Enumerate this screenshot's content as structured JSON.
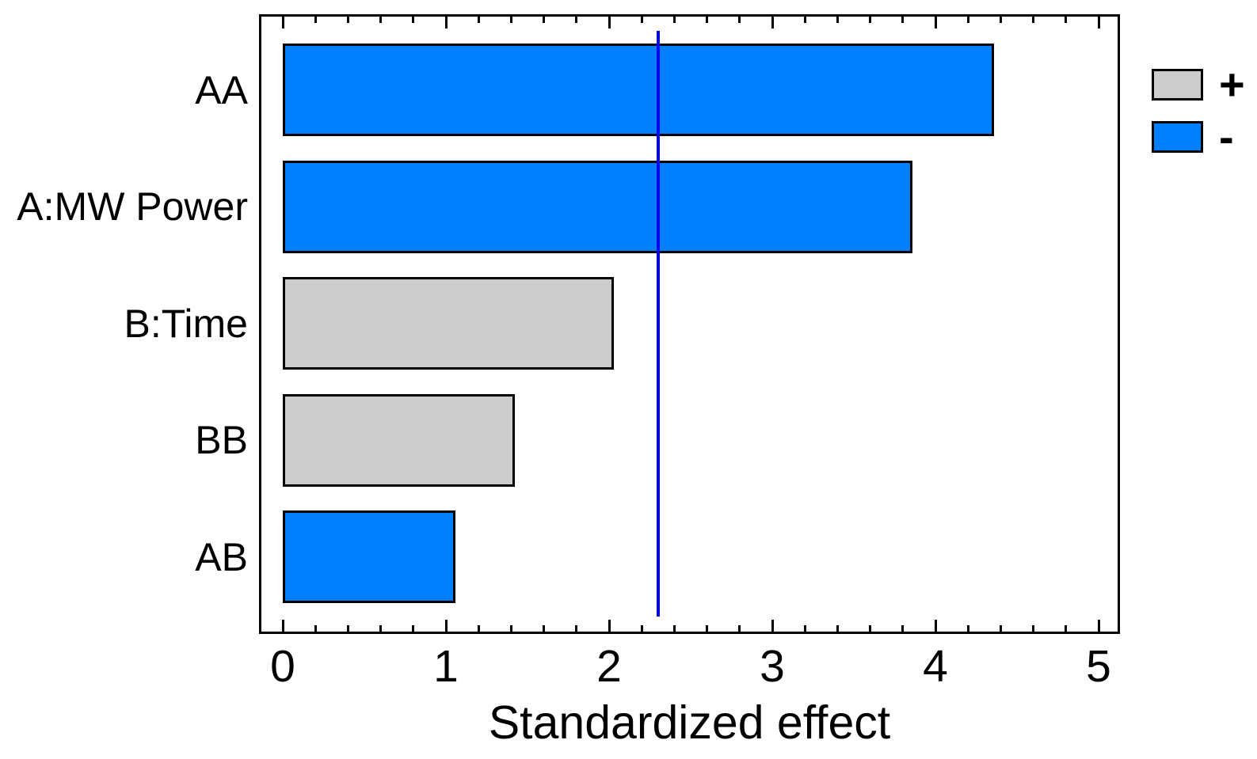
{
  "chart_data": {
    "type": "bar",
    "orientation": "horizontal",
    "title": "",
    "xlabel": "Standardized effect",
    "ylabel": "",
    "categories": [
      "AA",
      "A:MW Power",
      "B:Time",
      "BB",
      "AB"
    ],
    "values": [
      4.36,
      3.86,
      2.03,
      1.42,
      1.06
    ],
    "signs": [
      "-",
      "-",
      "+",
      "+",
      "-"
    ],
    "reference_line_x": 2.3,
    "xlim": [
      -0.15,
      5.13
    ],
    "xtick_labels": [
      "0",
      "1",
      "2",
      "3",
      "4",
      "5"
    ],
    "xtick_values": [
      0,
      1,
      2,
      3,
      4,
      5
    ],
    "minor_tick_step": 0.2,
    "grid": false,
    "legend": {
      "position": "outside-top-right",
      "items": [
        {
          "label": "+",
          "color": "#CCCCCC"
        },
        {
          "label": "-",
          "color": "#0080FF"
        }
      ]
    },
    "colors": {
      "positive_bar": "#CCCCCC",
      "negative_bar": "#0080FF",
      "bar_border": "#000000",
      "reference_line": "#0000FF",
      "frame": "#000000",
      "text": "#000000",
      "background": "#FFFFFF"
    }
  }
}
